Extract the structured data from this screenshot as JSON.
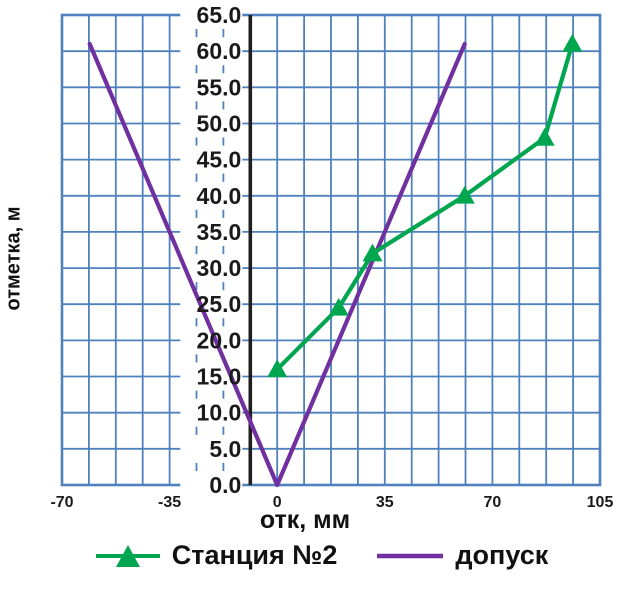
{
  "chart_data": {
    "type": "line",
    "title": "",
    "xlabel": "отк, мм",
    "ylabel": "отметка, м",
    "xlim": [
      -70,
      105
    ],
    "ylim": [
      0,
      65
    ],
    "x_grid_step": 8.75,
    "y_grid_step": 5,
    "axis_cross_x": -8.75,
    "grid": true,
    "legend_position": "bottom",
    "x_ticks": [
      {
        "value": -70,
        "label": "-70"
      },
      {
        "value": -35,
        "label": "-35"
      },
      {
        "value": 0,
        "label": "0"
      },
      {
        "value": 35,
        "label": "35"
      },
      {
        "value": 70,
        "label": "70"
      },
      {
        "value": 105,
        "label": "105"
      }
    ],
    "y_ticks": [
      {
        "value": 0,
        "label": "0.0"
      },
      {
        "value": 5,
        "label": "5.0"
      },
      {
        "value": 10,
        "label": "10.0"
      },
      {
        "value": 15,
        "label": "15.0"
      },
      {
        "value": 20,
        "label": "20.0"
      },
      {
        "value": 25,
        "label": "25.0"
      },
      {
        "value": 30,
        "label": "30.0"
      },
      {
        "value": 35,
        "label": "35.0"
      },
      {
        "value": 40,
        "label": "40.0"
      },
      {
        "value": 45,
        "label": "45.0"
      },
      {
        "value": 50,
        "label": "50.0"
      },
      {
        "value": 55,
        "label": "55.0"
      },
      {
        "value": 60,
        "label": "60.0"
      },
      {
        "value": 65,
        "label": "65.0"
      }
    ],
    "series": [
      {
        "name": "Станция №2",
        "color": "#00A550",
        "marker": "triangle",
        "points": [
          [
            0,
            16
          ],
          [
            20,
            24.5
          ],
          [
            31,
            32
          ],
          [
            61,
            40
          ],
          [
            87,
            48
          ],
          [
            96,
            61
          ]
        ]
      },
      {
        "name": "допуск",
        "color": "#7030A0",
        "marker": "none",
        "points": [
          [
            -61,
            61
          ],
          [
            0,
            0
          ],
          [
            61,
            61
          ]
        ]
      }
    ],
    "colors": {
      "grid": "#4F81BD",
      "border": "#4F81BD",
      "axis_line": "#1F1F1F",
      "text": "#1A1A1A",
      "background": "#FFFFFF"
    }
  }
}
